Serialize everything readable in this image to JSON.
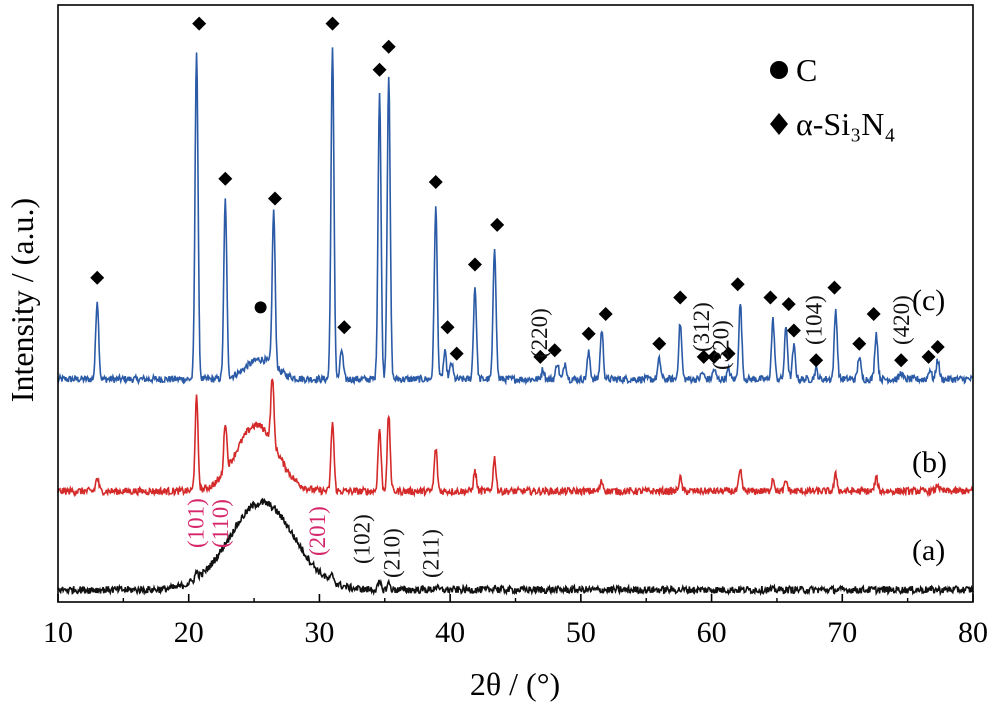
{
  "chart_data": {
    "type": "line",
    "xlabel": "2θ / (°)",
    "ylabel": "Intensity / (a.u.)",
    "xlim": [
      10,
      80
    ],
    "xticks": [
      10,
      20,
      30,
      40,
      50,
      60,
      70,
      80
    ],
    "grid": false,
    "legend": {
      "placement": "top-right",
      "entries": [
        {
          "marker": "circle",
          "label": "C"
        },
        {
          "marker": "diamond",
          "label": "α-Si₃N₄"
        }
      ]
    },
    "series": [
      {
        "label": "(c)",
        "color": "#2b5aa6",
        "baseline": 0.04,
        "broad_hump": {
          "center": 25.5,
          "height": 0.06,
          "width": 1.6
        },
        "peaks": [
          {
            "x": 13.0,
            "y": 0.24
          },
          {
            "x": 20.6,
            "y": 1.0
          },
          {
            "x": 22.8,
            "y": 0.54
          },
          {
            "x": 26.5,
            "y": 0.47
          },
          {
            "x": 31.0,
            "y": 1.0
          },
          {
            "x": 31.7,
            "y": 0.09
          },
          {
            "x": 34.6,
            "y": 0.87
          },
          {
            "x": 35.3,
            "y": 0.92
          },
          {
            "x": 38.9,
            "y": 0.52
          },
          {
            "x": 39.6,
            "y": 0.08
          },
          {
            "x": 40.1,
            "y": 0.05
          },
          {
            "x": 41.9,
            "y": 0.28
          },
          {
            "x": 43.4,
            "y": 0.4
          },
          {
            "x": 47.1,
            "y": 0.03
          },
          {
            "x": 48.2,
            "y": 0.05
          },
          {
            "x": 48.8,
            "y": 0.05
          },
          {
            "x": 50.6,
            "y": 0.08
          },
          {
            "x": 51.6,
            "y": 0.15
          },
          {
            "x": 56.0,
            "y": 0.06
          },
          {
            "x": 57.6,
            "y": 0.17
          },
          {
            "x": 59.3,
            "y": 0.02
          },
          {
            "x": 60.2,
            "y": 0.03
          },
          {
            "x": 61.3,
            "y": 0.03
          },
          {
            "x": 62.2,
            "y": 0.23
          },
          {
            "x": 64.7,
            "y": 0.18
          },
          {
            "x": 65.7,
            "y": 0.16
          },
          {
            "x": 66.3,
            "y": 0.1
          },
          {
            "x": 68.0,
            "y": 0.03
          },
          {
            "x": 69.5,
            "y": 0.21
          },
          {
            "x": 71.3,
            "y": 0.07
          },
          {
            "x": 72.6,
            "y": 0.14
          },
          {
            "x": 74.5,
            "y": 0.02
          },
          {
            "x": 76.7,
            "y": 0.03
          },
          {
            "x": 77.3,
            "y": 0.06
          }
        ]
      },
      {
        "label": "(b)",
        "color": "#d42a2a",
        "baseline": 0.04,
        "broad_hump": {
          "center": 25.2,
          "height": 0.2,
          "width": 2.2
        },
        "peaks": [
          {
            "x": 13.0,
            "y": 0.04
          },
          {
            "x": 20.6,
            "y": 0.28
          },
          {
            "x": 22.8,
            "y": 0.15
          },
          {
            "x": 26.4,
            "y": 0.2
          },
          {
            "x": 31.0,
            "y": 0.21
          },
          {
            "x": 34.6,
            "y": 0.19
          },
          {
            "x": 35.3,
            "y": 0.23
          },
          {
            "x": 38.9,
            "y": 0.13
          },
          {
            "x": 41.9,
            "y": 0.06
          },
          {
            "x": 43.4,
            "y": 0.1
          },
          {
            "x": 51.6,
            "y": 0.03
          },
          {
            "x": 57.6,
            "y": 0.04
          },
          {
            "x": 62.2,
            "y": 0.06
          },
          {
            "x": 64.7,
            "y": 0.04
          },
          {
            "x": 65.7,
            "y": 0.03
          },
          {
            "x": 69.5,
            "y": 0.05
          },
          {
            "x": 72.6,
            "y": 0.04
          },
          {
            "x": 77.3,
            "y": 0.02
          }
        ]
      },
      {
        "label": "(a)",
        "color": "#111111",
        "baseline": 0.01,
        "broad_hump": {
          "center": 25.6,
          "height": 0.26,
          "width": 3.5
        },
        "peaks": [
          {
            "x": 20.6,
            "y": 0.02
          },
          {
            "x": 31.0,
            "y": 0.02
          },
          {
            "x": 34.6,
            "y": 0.02
          },
          {
            "x": 35.3,
            "y": 0.02
          },
          {
            "x": 38.9,
            "y": 0.01
          },
          {
            "x": 43.4,
            "y": 0.01
          }
        ]
      }
    ],
    "markers": {
      "circle": [
        {
          "x": 25.5,
          "y": 0.22
        }
      ],
      "diamond": [
        {
          "x": 13.0,
          "y": 0.31
        },
        {
          "x": 20.8,
          "y": 1.08
        },
        {
          "x": 22.8,
          "y": 0.61
        },
        {
          "x": 26.6,
          "y": 0.55
        },
        {
          "x": 31.0,
          "y": 1.08
        },
        {
          "x": 31.9,
          "y": 0.16
        },
        {
          "x": 34.6,
          "y": 0.94
        },
        {
          "x": 35.3,
          "y": 1.01
        },
        {
          "x": 38.9,
          "y": 0.6
        },
        {
          "x": 39.8,
          "y": 0.16
        },
        {
          "x": 40.5,
          "y": 0.08
        },
        {
          "x": 41.9,
          "y": 0.35
        },
        {
          "x": 43.6,
          "y": 0.47
        },
        {
          "x": 46.9,
          "y": 0.07
        },
        {
          "x": 48.0,
          "y": 0.09
        },
        {
          "x": 50.6,
          "y": 0.14
        },
        {
          "x": 51.9,
          "y": 0.2
        },
        {
          "x": 56.0,
          "y": 0.11
        },
        {
          "x": 57.6,
          "y": 0.25
        },
        {
          "x": 59.4,
          "y": 0.07
        },
        {
          "x": 60.2,
          "y": 0.07
        },
        {
          "x": 61.3,
          "y": 0.08
        },
        {
          "x": 62.0,
          "y": 0.29
        },
        {
          "x": 64.5,
          "y": 0.25
        },
        {
          "x": 65.9,
          "y": 0.23
        },
        {
          "x": 66.3,
          "y": 0.15
        },
        {
          "x": 68.0,
          "y": 0.06
        },
        {
          "x": 69.4,
          "y": 0.28
        },
        {
          "x": 71.3,
          "y": 0.11
        },
        {
          "x": 72.4,
          "y": 0.2
        },
        {
          "x": 74.5,
          "y": 0.06
        },
        {
          "x": 76.6,
          "y": 0.07
        },
        {
          "x": 77.3,
          "y": 0.1
        }
      ]
    },
    "hkl_labels": [
      {
        "text": "(101)",
        "x": 20.5,
        "color": "#d6266b"
      },
      {
        "text": "(110)",
        "x": 22.4,
        "color": "#d6266b"
      },
      {
        "text": "(201)",
        "x": 29.8,
        "color": "#d6266b"
      },
      {
        "text": "(102)",
        "x": 33.2,
        "color": "#111111"
      },
      {
        "text": "(210)",
        "x": 35.5,
        "color": "#111111"
      },
      {
        "text": "(211)",
        "x": 38.5,
        "color": "#111111"
      },
      {
        "text": "(220)",
        "x": 46.8,
        "color": "#111111"
      },
      {
        "text": "(312)",
        "x": 59.2,
        "color": "#111111"
      },
      {
        "text": "(320)",
        "x": 60.7,
        "color": "#111111"
      },
      {
        "text": "(104)",
        "x": 67.8,
        "color": "#111111"
      },
      {
        "text": "(420)",
        "x": 74.5,
        "color": "#111111"
      }
    ]
  }
}
